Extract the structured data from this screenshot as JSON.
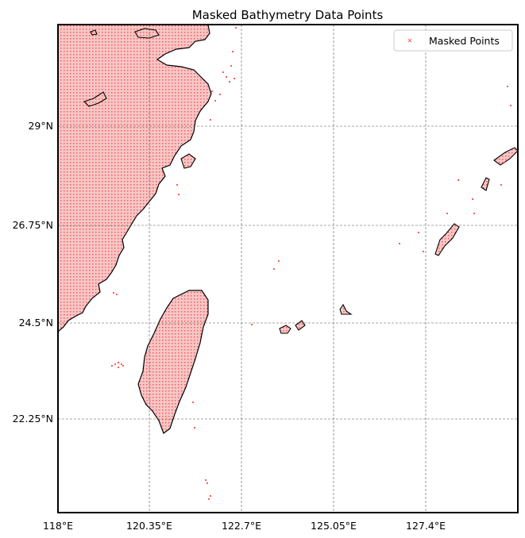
{
  "title": "Masked Bathymetry Data Points",
  "legend": {
    "label": "Masked Points",
    "placement": "upper-right"
  },
  "colors": {
    "land_fill": "#f4b4b4",
    "marker": "#ff3b3b",
    "coastline": "#000000",
    "grid": "#555555"
  },
  "map_extent": {
    "lon": [
      118,
      130.5
    ],
    "lat": [
      20.3,
      31.6
    ]
  },
  "x_ticks": [
    {
      "value": 118,
      "label": "118°E"
    },
    {
      "value": 120.35,
      "label": "120.35°E"
    },
    {
      "value": 122.7,
      "label": "122.7°E"
    },
    {
      "value": 125.05,
      "label": "125.05°E"
    },
    {
      "value": 127.4,
      "label": "127.4°E"
    }
  ],
  "y_ticks": [
    {
      "value": 29,
      "label": "29°N"
    },
    {
      "value": 26.75,
      "label": "26.75°N"
    },
    {
      "value": 24.5,
      "label": "24.5°N"
    },
    {
      "value": 22.25,
      "label": "22.25°N"
    }
  ],
  "grid": true
}
